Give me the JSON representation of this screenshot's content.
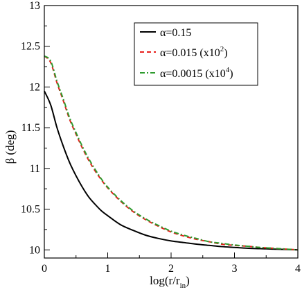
{
  "chart_data": {
    "type": "line",
    "title": "",
    "xlabel": {
      "main": "log(r/r",
      "sub": "in",
      "tail": ")"
    },
    "ylabel": "β (deg)",
    "xlim": [
      0,
      4
    ],
    "ylim": [
      9.9,
      13
    ],
    "xticks": [
      0,
      1,
      2,
      3,
      4
    ],
    "xtick_labels": [
      "0",
      "1",
      "2",
      "3",
      "4"
    ],
    "yticks": [
      10,
      10.5,
      11,
      11.5,
      12,
      12.5,
      13
    ],
    "ytick_labels": [
      "10",
      "10.5",
      "11",
      "11.5",
      "12",
      "12.5",
      "13"
    ],
    "grid": false,
    "legend_position": "top-right",
    "series": [
      {
        "name": "α=0.15",
        "label_main": "α=0.15",
        "label_sup": "",
        "label_tail": "",
        "color": "#000000",
        "style": "solid",
        "x": [
          0,
          0.1,
          0.2,
          0.3,
          0.4,
          0.5,
          0.6,
          0.7,
          0.8,
          0.9,
          1.0,
          1.2,
          1.4,
          1.6,
          1.8,
          2.0,
          2.2,
          2.4,
          2.6,
          2.8,
          3.0,
          3.2,
          3.4,
          3.6,
          3.8,
          4.0
        ],
        "y": [
          11.95,
          11.78,
          11.5,
          11.27,
          11.07,
          10.91,
          10.77,
          10.65,
          10.56,
          10.48,
          10.42,
          10.31,
          10.24,
          10.18,
          10.14,
          10.11,
          10.09,
          10.07,
          10.055,
          10.04,
          10.03,
          10.02,
          10.015,
          10.01,
          10.005,
          10.0
        ]
      },
      {
        "name": "α=0.015 (x10²)",
        "label_main": "α=0.015 (x10",
        "label_sup": "2",
        "label_tail": ")",
        "color": "#e8201c",
        "style": "dashed",
        "x": [
          0,
          0.1,
          0.2,
          0.3,
          0.4,
          0.5,
          0.6,
          0.7,
          0.8,
          0.9,
          1.0,
          1.2,
          1.4,
          1.6,
          1.8,
          2.0,
          2.2,
          2.4,
          2.6,
          2.8,
          3.0,
          3.2,
          3.4,
          3.6,
          3.8,
          4.0
        ],
        "y": [
          12.38,
          12.3,
          12.05,
          11.83,
          11.6,
          11.42,
          11.25,
          11.1,
          10.97,
          10.86,
          10.76,
          10.6,
          10.47,
          10.37,
          10.29,
          10.22,
          10.17,
          10.13,
          10.1,
          10.07,
          10.055,
          10.045,
          10.03,
          10.02,
          10.01,
          10.0
        ]
      },
      {
        "name": "α=0.0015 (x10⁴)",
        "label_main": "α=0.0015 (x10",
        "label_sup": "4",
        "label_tail": ")",
        "color": "#2e9b2e",
        "style": "dashdot",
        "x": [
          0,
          0.1,
          0.2,
          0.3,
          0.4,
          0.5,
          0.6,
          0.7,
          0.8,
          0.9,
          1.0,
          1.2,
          1.4,
          1.6,
          1.8,
          2.0,
          2.2,
          2.4,
          2.6,
          2.8,
          3.0,
          3.2,
          3.4,
          3.6,
          3.8,
          4.0
        ],
        "y": [
          12.38,
          12.32,
          12.07,
          11.85,
          11.62,
          11.44,
          11.27,
          11.12,
          10.99,
          10.87,
          10.77,
          10.61,
          10.48,
          10.38,
          10.3,
          10.23,
          10.18,
          10.14,
          10.1,
          10.08,
          10.06,
          10.045,
          10.03,
          10.02,
          10.01,
          10.0
        ]
      }
    ]
  }
}
